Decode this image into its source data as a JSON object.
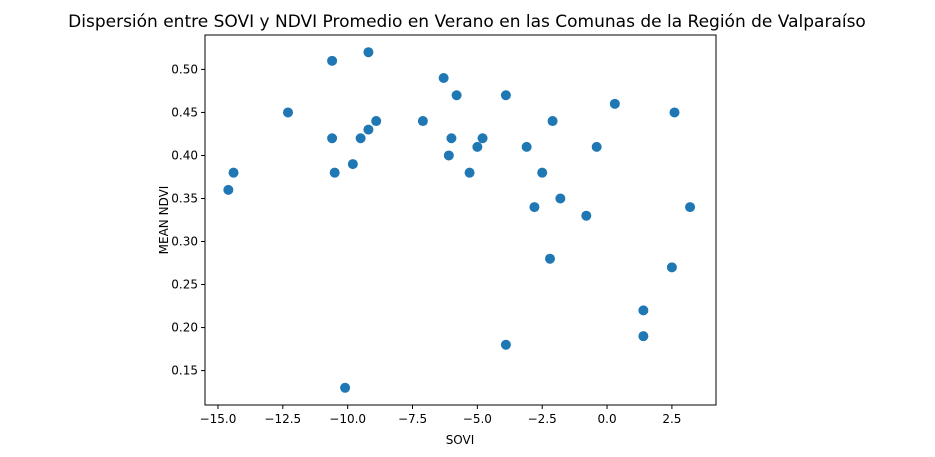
{
  "chart_data": {
    "type": "scatter",
    "title": "Dispersión entre SOVI y NDVI Promedio en Verano en las Comunas de la Región de Valparaíso",
    "xlabel": "SOVI",
    "ylabel": "MEAN NDVI",
    "xlim": [
      -15.5,
      4.2
    ],
    "ylim": [
      0.11,
      0.54
    ],
    "xticks": [
      "-15.0",
      "-12.5",
      "-10.0",
      "-7.5",
      "-5.0",
      "-2.5",
      "0.0",
      "2.5"
    ],
    "yticks": [
      "0.15",
      "0.20",
      "0.25",
      "0.30",
      "0.35",
      "0.40",
      "0.45",
      "0.50"
    ],
    "grid": false,
    "marker_color": "#1f77b4",
    "points": [
      {
        "x": -14.6,
        "y": 0.36
      },
      {
        "x": -14.4,
        "y": 0.38
      },
      {
        "x": -12.3,
        "y": 0.45
      },
      {
        "x": -10.6,
        "y": 0.51
      },
      {
        "x": -10.6,
        "y": 0.42
      },
      {
        "x": -10.5,
        "y": 0.38
      },
      {
        "x": -10.1,
        "y": 0.13
      },
      {
        "x": -9.8,
        "y": 0.39
      },
      {
        "x": -9.5,
        "y": 0.42
      },
      {
        "x": -9.2,
        "y": 0.52
      },
      {
        "x": -9.2,
        "y": 0.43
      },
      {
        "x": -8.9,
        "y": 0.44
      },
      {
        "x": -7.1,
        "y": 0.44
      },
      {
        "x": -6.3,
        "y": 0.49
      },
      {
        "x": -6.1,
        "y": 0.4
      },
      {
        "x": -6.0,
        "y": 0.42
      },
      {
        "x": -5.8,
        "y": 0.47
      },
      {
        "x": -5.3,
        "y": 0.38
      },
      {
        "x": -5.0,
        "y": 0.41
      },
      {
        "x": -4.8,
        "y": 0.42
      },
      {
        "x": -3.9,
        "y": 0.47
      },
      {
        "x": -3.9,
        "y": 0.18
      },
      {
        "x": -3.1,
        "y": 0.41
      },
      {
        "x": -2.8,
        "y": 0.34
      },
      {
        "x": -2.5,
        "y": 0.38
      },
      {
        "x": -2.2,
        "y": 0.28
      },
      {
        "x": -2.1,
        "y": 0.44
      },
      {
        "x": -1.8,
        "y": 0.35
      },
      {
        "x": -0.8,
        "y": 0.33
      },
      {
        "x": -0.4,
        "y": 0.41
      },
      {
        "x": 0.3,
        "y": 0.46
      },
      {
        "x": 1.4,
        "y": 0.22
      },
      {
        "x": 1.4,
        "y": 0.19
      },
      {
        "x": 2.5,
        "y": 0.27
      },
      {
        "x": 2.6,
        "y": 0.45
      },
      {
        "x": 3.2,
        "y": 0.34
      }
    ]
  }
}
